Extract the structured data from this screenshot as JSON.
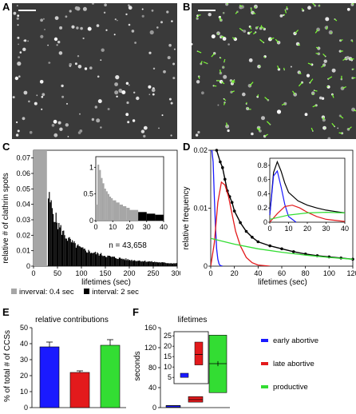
{
  "panels": {
    "A": "A",
    "B": "B",
    "C": "C",
    "D": "D",
    "E": "E",
    "F": "F"
  },
  "colors": {
    "gray": "#a6a6a6",
    "black": "#000000",
    "blue": "#1a1aff",
    "red": "#e31a1c",
    "green": "#33dd33",
    "micro_bg": "#2b2b2b",
    "overlay_green": "#7cff33"
  },
  "panel_C": {
    "ylabel": "relative # of clathrin spots",
    "xlabel": "lifetimes (sec)",
    "annotation": "n = 43,658",
    "legend": [
      {
        "label": "inverval: 0.4 sec",
        "color": "#a6a6a6"
      },
      {
        "label": "interval: 2 sec",
        "color": "#000000"
      }
    ],
    "yticks": [
      "0",
      "0.01",
      "0.02",
      "0.03",
      "0.04",
      "0.05",
      "0.06",
      "0.07"
    ],
    "xticks": [
      "0",
      "50",
      "100",
      "150",
      "200",
      "250",
      "300"
    ],
    "inset_yticks": [
      "0",
      "0.5",
      "1"
    ],
    "inset_xticks": [
      "0",
      "10",
      "20",
      "30",
      "40"
    ]
  },
  "panel_D": {
    "ylabel": "relative frequency",
    "xlabel": "lifetimes (sec)",
    "yticks": [
      "0",
      "0.01",
      "0.02"
    ],
    "xticks": [
      "0",
      "20",
      "40",
      "60",
      "80",
      "100",
      "120"
    ],
    "inset_yticks": [
      "0",
      "0.2",
      "0.4",
      "0.6",
      "0.8"
    ],
    "inset_xticks": [
      "0",
      "10",
      "20",
      "30",
      "40"
    ]
  },
  "panel_E": {
    "title": "relative contributions",
    "ylabel": "% of total # of CCSs",
    "yticks": [
      "0",
      "10",
      "20",
      "30",
      "40",
      "50"
    ]
  },
  "panel_F": {
    "title": "lifetimes",
    "ylabel": "seconds",
    "yticks": [
      "0",
      "40",
      "80",
      "120",
      "160"
    ],
    "inset_yticks": [
      "5",
      "10",
      "15",
      "20",
      "25"
    ]
  },
  "legend_F": [
    {
      "label": "early abortive",
      "color": "#1a1aff"
    },
    {
      "label": "late abortive",
      "color": "#e31a1c"
    },
    {
      "label": "productive",
      "color": "#33dd33"
    }
  ],
  "chart_data": [
    {
      "type": "bar",
      "panel": "C",
      "xlim": [
        0,
        300
      ],
      "ylim": [
        0,
        0.075
      ],
      "series": [
        {
          "name": "inverval: 0.4 sec",
          "color": "#a6a6a6",
          "x": [
            0,
            28
          ],
          "values": [
            0.075,
            0.075
          ]
        },
        {
          "name": "interval: 2 sec",
          "color": "#000000",
          "x": [
            30,
            40,
            50,
            60,
            70,
            80,
            90,
            100,
            120,
            140,
            160,
            180,
            200,
            220,
            240,
            260,
            280,
            300
          ],
          "values": [
            0.045,
            0.035,
            0.027,
            0.022,
            0.018,
            0.015,
            0.013,
            0.011,
            0.009,
            0.0075,
            0.006,
            0.005,
            0.004,
            0.0035,
            0.003,
            0.0025,
            0.002,
            0.0018
          ]
        }
      ]
    },
    {
      "type": "bar",
      "panel": "C-inset",
      "xlim": [
        0,
        40
      ],
      "ylim": [
        0,
        1.2
      ],
      "x": [
        1,
        2,
        3,
        4,
        5,
        6,
        7,
        8,
        9,
        10,
        12,
        14,
        16,
        18,
        20,
        25,
        30,
        35,
        40
      ],
      "values": [
        0.3,
        1.05,
        0.95,
        0.8,
        0.7,
        0.6,
        0.55,
        0.5,
        0.45,
        0.42,
        0.38,
        0.34,
        0.3,
        0.27,
        0.24,
        0.2,
        0.16,
        0.13,
        0.11
      ]
    },
    {
      "type": "line",
      "panel": "D",
      "xlim": [
        0,
        120
      ],
      "ylim": [
        0,
        0.02
      ],
      "series": [
        {
          "name": "data",
          "color": "#000000",
          "x": [
            5,
            8,
            10,
            12,
            14,
            16,
            18,
            20,
            25,
            30,
            35,
            40,
            50,
            60,
            70,
            80,
            90,
            100,
            110,
            120
          ],
          "y": [
            0.02,
            0.018,
            0.017,
            0.015,
            0.013,
            0.012,
            0.011,
            0.0095,
            0.0075,
            0.006,
            0.005,
            0.0042,
            0.0035,
            0.003,
            0.0025,
            0.0021,
            0.0018,
            0.0016,
            0.0014,
            0.0012
          ]
        },
        {
          "name": "early abortive",
          "color": "#1a1aff",
          "x": [
            0,
            1,
            2,
            3,
            4,
            5,
            6,
            7,
            8,
            10
          ],
          "y": [
            0.02,
            0.02,
            0.018,
            0.012,
            0.007,
            0.003,
            0.0012,
            0.0004,
            0.0001,
            0
          ]
        },
        {
          "name": "late abortive",
          "color": "#e31a1c",
          "x": [
            0,
            3,
            6,
            9,
            12,
            15,
            18,
            21,
            25,
            30,
            35,
            40,
            50
          ],
          "y": [
            0,
            0.004,
            0.011,
            0.0145,
            0.014,
            0.012,
            0.009,
            0.006,
            0.0035,
            0.0015,
            0.0006,
            0.0002,
            0
          ]
        },
        {
          "name": "productive",
          "color": "#33dd33",
          "x": [
            0,
            20,
            40,
            60,
            80,
            100,
            120
          ],
          "y": [
            0.0048,
            0.0038,
            0.003,
            0.0024,
            0.0019,
            0.0015,
            0.0012
          ]
        }
      ]
    },
    {
      "type": "bar",
      "panel": "E",
      "categories": [
        "early abortive",
        "late abortive",
        "productive"
      ],
      "values": [
        38,
        22,
        39
      ],
      "errors": [
        3,
        1,
        3.5
      ],
      "colors": [
        "#1a1aff",
        "#e31a1c",
        "#33dd33"
      ],
      "ylim": [
        0,
        50
      ]
    },
    {
      "type": "box",
      "panel": "F",
      "categories": [
        "early abortive",
        "late abortive",
        "productive"
      ],
      "ylim": [
        0,
        160
      ],
      "boxes": [
        {
          "low": 3,
          "high": 4,
          "median": 4,
          "color": "#1a1aff"
        },
        {
          "low": 11,
          "high": 22,
          "median": 16,
          "color": "#e31a1c"
        },
        {
          "low": 30,
          "high": 145,
          "median": 88,
          "color": "#33dd33"
        }
      ]
    }
  ]
}
